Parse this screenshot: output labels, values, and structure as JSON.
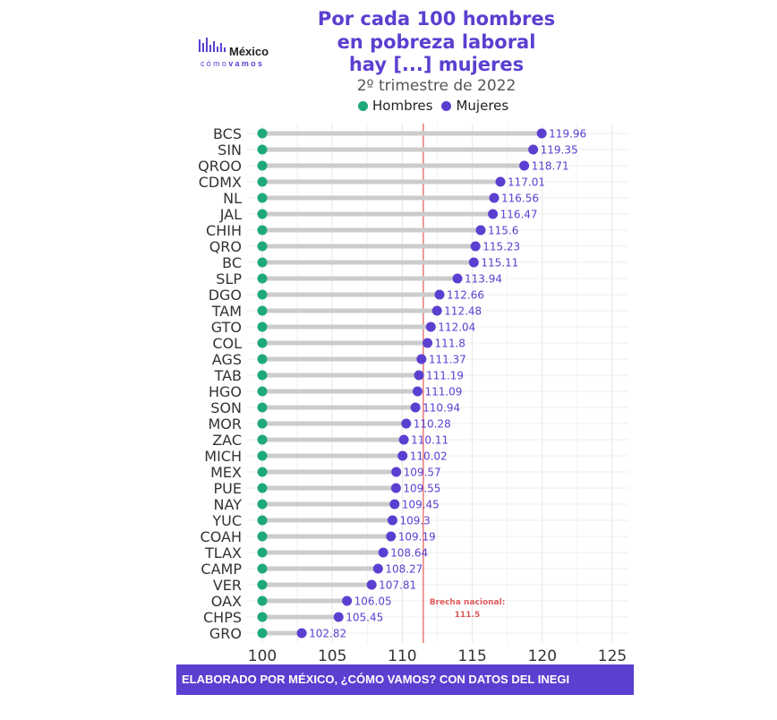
{
  "logo": {
    "name": "México",
    "sub_a": "cómo",
    "sub_b": "vamos"
  },
  "title_lines": [
    "Por cada 100 hombres",
    "en pobreza laboral",
    "hay [...] mujeres"
  ],
  "subtitle": "2º trimestre de 2022",
  "footer": "ELABORADO POR MÉXICO, ¿CÓMO VAMOS? CON DATOS DEL INEGI",
  "colors": {
    "hombres": "#1fa97a",
    "mujeres": "#5b3fd0",
    "reference": "#e05a5a",
    "segment": "#cccccc",
    "title": "#5b3fd0"
  },
  "chart_data": {
    "type": "dumbbell",
    "title": "Por cada 100 hombres en pobreza laboral hay [...] mujeres",
    "subtitle": "2º trimestre de 2022",
    "legend": [
      "Hombres",
      "Mujeres"
    ],
    "legend_position": "top",
    "xlim": [
      100,
      125
    ],
    "xticks": [
      100,
      105,
      110,
      115,
      120,
      125
    ],
    "grid": true,
    "hombres_value": 100,
    "reference": {
      "value": 111.5,
      "label_line1": "Brecha nacional:",
      "label_line2": "111.5"
    },
    "categories": [
      "BCS",
      "SIN",
      "QROO",
      "CDMX",
      "NL",
      "JAL",
      "CHIH",
      "QRO",
      "BC",
      "SLP",
      "DGO",
      "TAM",
      "GTO",
      "COL",
      "AGS",
      "TAB",
      "HGO",
      "SON",
      "MOR",
      "ZAC",
      "MICH",
      "MEX",
      "PUE",
      "NAY",
      "YUC",
      "COAH",
      "TLAX",
      "CAMP",
      "VER",
      "OAX",
      "CHPS",
      "GRO"
    ],
    "values": [
      "119.96",
      "119.35",
      "118.71",
      "117.01",
      "116.56",
      "116.47",
      "115.6",
      "115.23",
      "115.11",
      "113.94",
      "112.66",
      "112.48",
      "112.04",
      "111.8",
      "111.37",
      "111.19",
      "111.09",
      "110.94",
      "110.28",
      "110.11",
      "110.02",
      "109.57",
      "109.55",
      "109.45",
      "109.3",
      "109.19",
      "108.64",
      "108.27",
      "107.81",
      "106.05",
      "105.45",
      "102.82"
    ]
  }
}
